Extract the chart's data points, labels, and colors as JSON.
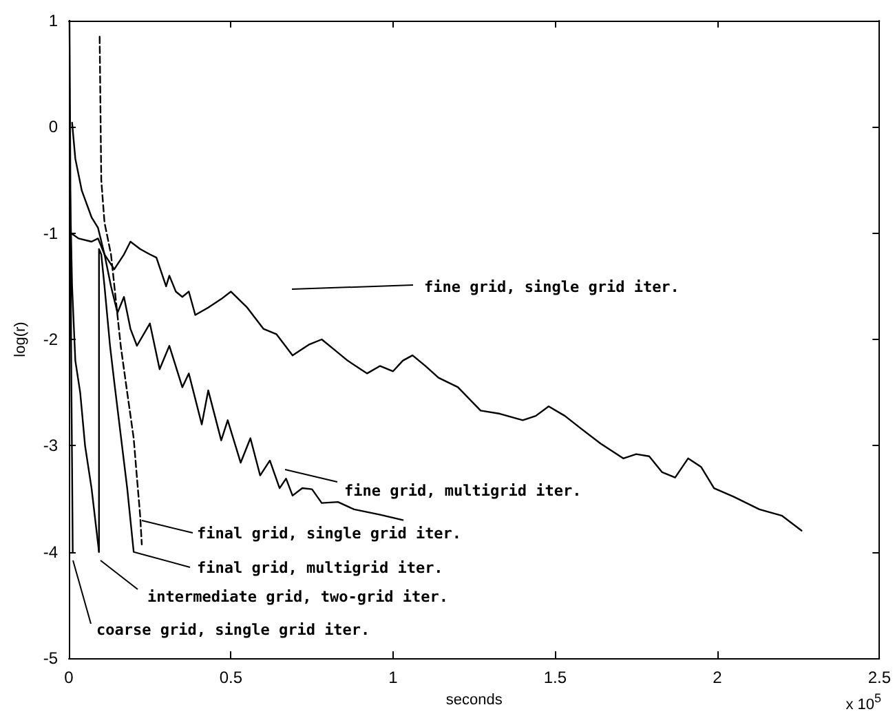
{
  "chart_data": {
    "type": "line",
    "xlabel": "seconds",
    "ylabel": "log(r)",
    "xlim": [
      0,
      2.5
    ],
    "xticks": [
      0,
      0.5,
      1,
      1.5,
      2,
      2.5
    ],
    "ylim": [
      -5,
      1
    ],
    "yticks": [
      -5,
      -4,
      -3,
      -2,
      -1,
      0,
      1
    ],
    "grid": false,
    "marker": "none",
    "series": [
      {
        "color": "#000000",
        "line_style": "solid",
        "x": [
          0.007,
          0.03,
          0.07,
          0.09,
          0.11,
          0.14,
          0.17,
          0.19,
          0.22,
          0.25,
          0.27,
          0.3,
          0.31,
          0.33,
          0.35,
          0.37,
          0.39,
          0.43,
          0.47,
          0.5,
          0.55,
          0.6,
          0.64,
          0.69,
          0.74,
          0.78,
          0.82,
          0.86,
          0.92,
          0.96,
          1.0,
          1.03,
          1.06,
          1.1,
          1.14,
          1.2,
          1.27,
          1.33,
          1.4,
          1.44,
          1.48,
          1.53,
          1.58,
          1.64,
          1.71,
          1.75,
          1.79,
          1.83,
          1.87,
          1.91,
          1.95,
          1.99,
          2.05,
          2.13,
          2.2,
          2.26
        ],
        "values": [
          -1.0,
          -1.05,
          -1.08,
          -1.05,
          -1.2,
          -1.34,
          -1.2,
          -1.08,
          -1.15,
          -1.2,
          -1.23,
          -1.5,
          -1.4,
          -1.55,
          -1.6,
          -1.55,
          -1.77,
          -1.7,
          -1.62,
          -1.55,
          -1.7,
          -1.9,
          -1.95,
          -2.15,
          -2.05,
          -2.0,
          -2.1,
          -2.2,
          -2.32,
          -2.25,
          -2.3,
          -2.2,
          -2.15,
          -2.25,
          -2.36,
          -2.45,
          -2.67,
          -2.7,
          -2.76,
          -2.72,
          -2.63,
          -2.72,
          -2.84,
          -2.98,
          -3.12,
          -3.08,
          -3.1,
          -3.25,
          -3.3,
          -3.12,
          -3.2,
          -3.4,
          -3.48,
          -3.6,
          -3.66,
          -3.8
        ]
      },
      {
        "color": "#000000",
        "line_style": "solid",
        "x": [
          0.01,
          0.02,
          0.04,
          0.07,
          0.09,
          0.11,
          0.13,
          0.15,
          0.17,
          0.19,
          0.21,
          0.25,
          0.28,
          0.31,
          0.35,
          0.37,
          0.41,
          0.43,
          0.47,
          0.49,
          0.53,
          0.56,
          0.59,
          0.62,
          0.65,
          0.67,
          0.69,
          0.72,
          0.75,
          0.78,
          0.83,
          0.88,
          0.96,
          1.03
        ],
        "values": [
          0.04,
          -0.3,
          -0.6,
          -0.85,
          -0.95,
          -1.2,
          -1.5,
          -1.75,
          -1.6,
          -1.9,
          -2.06,
          -1.85,
          -2.28,
          -2.06,
          -2.45,
          -2.32,
          -2.8,
          -2.48,
          -2.95,
          -2.76,
          -3.16,
          -2.93,
          -3.28,
          -3.14,
          -3.4,
          -3.31,
          -3.47,
          -3.4,
          -3.41,
          -3.54,
          -3.53,
          -3.6,
          -3.65,
          -3.7
        ]
      },
      {
        "color": "#000000",
        "line_style": "dashed",
        "x": [
          0.095,
          0.1,
          0.11,
          0.13,
          0.16,
          0.18,
          0.2,
          0.21,
          0.22,
          0.225
        ],
        "values": [
          0.85,
          -0.5,
          -0.9,
          -1.2,
          -2.06,
          -2.5,
          -2.93,
          -3.3,
          -3.66,
          -3.93
        ]
      },
      {
        "color": "#000000",
        "line_style": "solid",
        "x": [
          0.093,
          0.093,
          0.1,
          0.11,
          0.127,
          0.14,
          0.16,
          0.18,
          0.2
        ],
        "values": [
          -4.0,
          -1.15,
          -1.2,
          -1.5,
          -2.06,
          -2.4,
          -2.9,
          -3.4,
          -4.0
        ]
      },
      {
        "color": "#000000",
        "line_style": "solid",
        "x": [
          0.004,
          0.01,
          0.02,
          0.035,
          0.05,
          0.07,
          0.093
        ],
        "values": [
          -0.6,
          -1.5,
          -2.2,
          -2.5,
          -3.0,
          -3.4,
          -4.0
        ]
      },
      {
        "color": "#000000",
        "line_style": "solid",
        "x": [
          0.002,
          0.004,
          0.006,
          0.008,
          0.01,
          0.012
        ],
        "values": [
          1.0,
          0.0,
          -1.5,
          -2.5,
          -3.2,
          -4.0
        ]
      }
    ],
    "annotations": [
      "fine grid, single grid iter.",
      "fine grid, multigrid iter.",
      "final grid, single grid iter.",
      {
        "text": "final grid, multigrid iter.",
        "x": 0.2,
        "y": -4.0
      },
      "intermediate grid, two-grid iter.",
      "coarse grid, single grid iter.",
      "x 10$^{5}$"
    ]
  }
}
